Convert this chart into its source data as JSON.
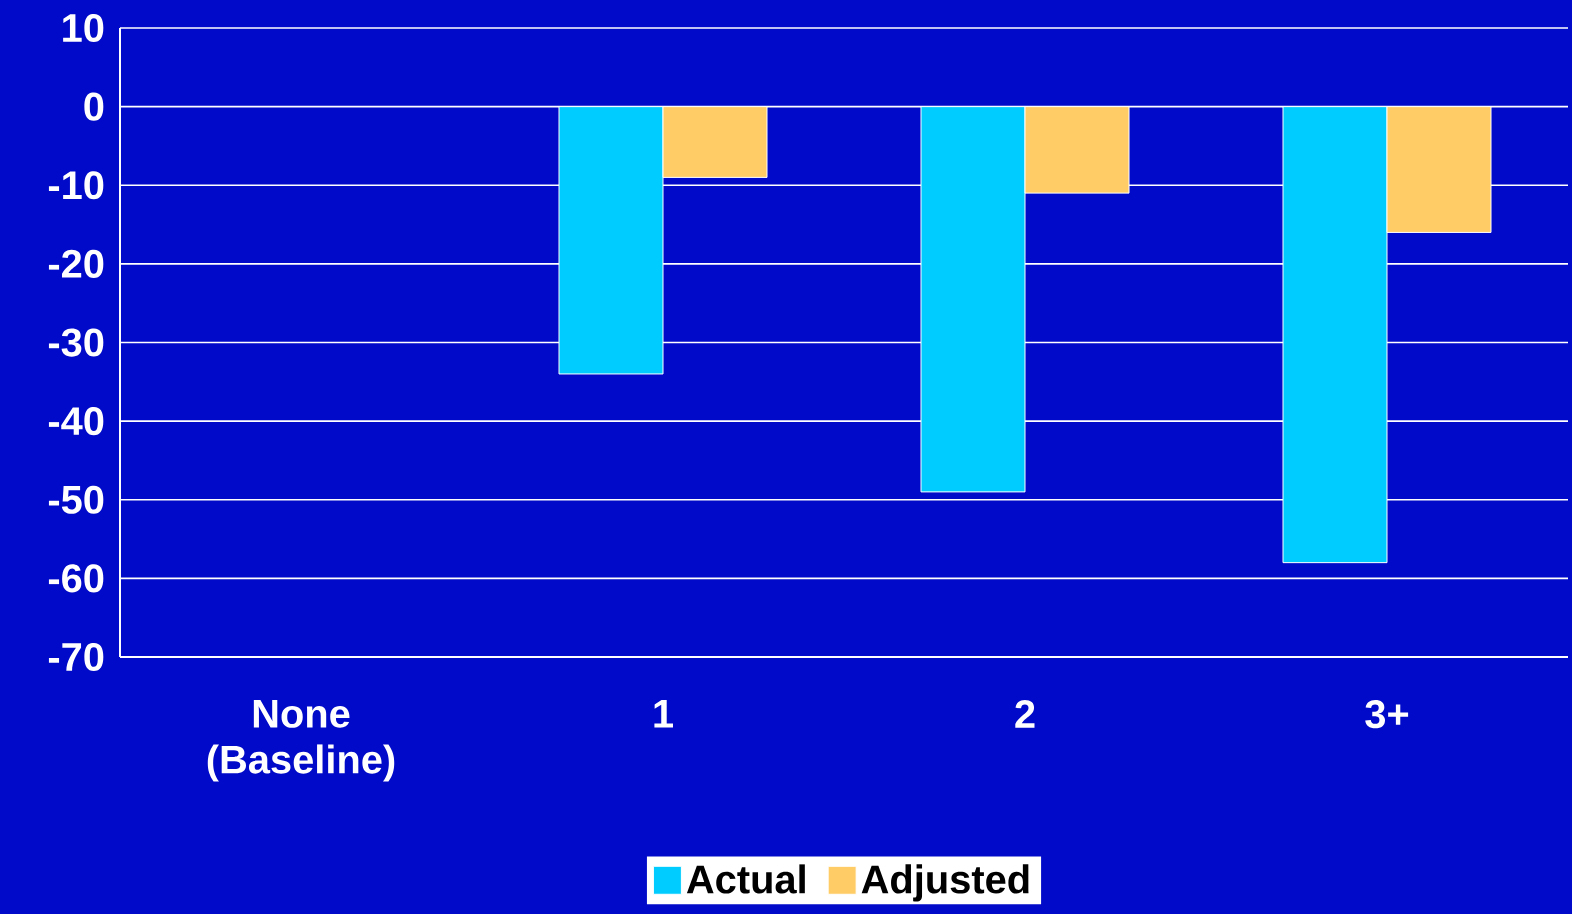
{
  "chart_data": {
    "type": "bar",
    "categories": [
      "None (Baseline)",
      "1",
      "2",
      "3+"
    ],
    "series": [
      {
        "name": "Actual",
        "color": "#00ccff",
        "values": [
          null,
          -34,
          -49,
          -58
        ]
      },
      {
        "name": "Adjusted",
        "color": "#ffcc66",
        "values": [
          null,
          -9,
          -11,
          -16
        ]
      }
    ],
    "ylim": [
      -70,
      10
    ],
    "yticks": [
      -70,
      -60,
      -50,
      -40,
      -30,
      -20,
      -10,
      0,
      10
    ],
    "grid": "y",
    "legend": "bottom"
  }
}
